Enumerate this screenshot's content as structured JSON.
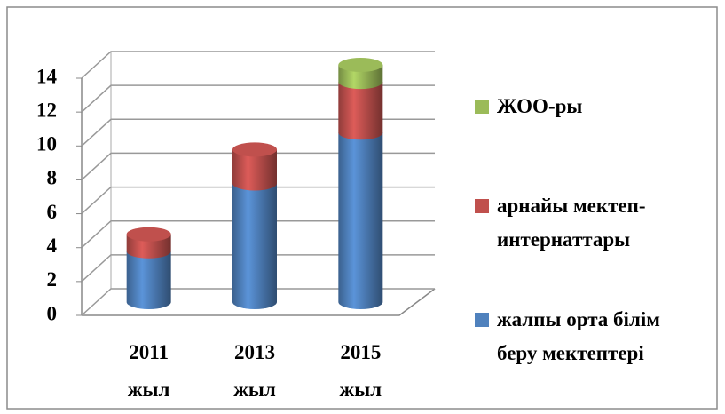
{
  "chart_data": {
    "type": "stacked-cylinder",
    "categories": [
      "2011 жыл",
      "2013 жыл",
      "2015 жыл"
    ],
    "series": [
      {
        "name": "жалпы орта білім беру мектептері",
        "color": "#4f81bd",
        "values": [
          3,
          7,
          10
        ]
      },
      {
        "name": "арнайы мектеп-интернаттары",
        "color": "#c0504d",
        "values": [
          1,
          2,
          3
        ]
      },
      {
        "name": "ЖОО-ры",
        "color": "#9bbb59",
        "values": [
          null,
          null,
          1
        ]
      }
    ],
    "ylim": [
      0,
      14
    ],
    "yticks": [
      0,
      2,
      4,
      6,
      8,
      10,
      12,
      14
    ],
    "grid": true,
    "legend": "right"
  }
}
